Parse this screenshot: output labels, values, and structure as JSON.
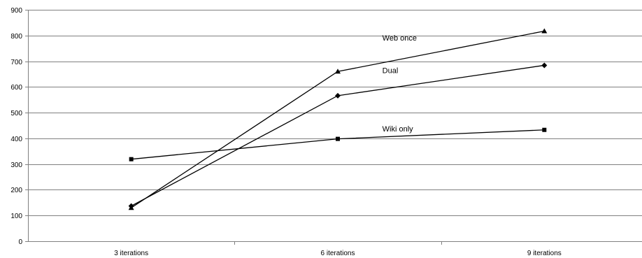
{
  "chart_data": {
    "type": "line",
    "categories": [
      "3 iterations",
      "6 iterations",
      "9 iterations"
    ],
    "ylim": [
      0,
      900
    ],
    "yticks": [
      0,
      100,
      200,
      300,
      400,
      500,
      600,
      700,
      800,
      900
    ],
    "grid": true,
    "legend": "none",
    "series": [
      {
        "name": "Web once",
        "marker": "triangle",
        "values": [
          130,
          660,
          817
        ]
      },
      {
        "name": "Dual",
        "marker": "diamond",
        "values": [
          137,
          566,
          684
        ]
      },
      {
        "name": "Wiki only",
        "marker": "square",
        "values": [
          319,
          398,
          433
        ]
      }
    ],
    "colors": {
      "line": "#000000",
      "grid": "#808080",
      "axis": "#808080"
    }
  }
}
